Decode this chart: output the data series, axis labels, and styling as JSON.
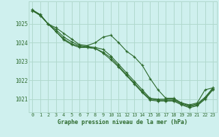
{
  "background_color": "#cff0ee",
  "grid_color": "#b0d8cc",
  "line_color": "#2d6a2d",
  "marker_color": "#2d6a2d",
  "xlabel": "Graphe pression niveau de la mer (hPa)",
  "xlim": [
    -0.5,
    23.5
  ],
  "ylim": [
    1020.3,
    1026.2
  ],
  "yticks": [
    1021,
    1022,
    1023,
    1024,
    1025
  ],
  "xticks": [
    0,
    1,
    2,
    3,
    4,
    5,
    6,
    7,
    8,
    9,
    10,
    11,
    12,
    13,
    14,
    15,
    16,
    17,
    18,
    19,
    20,
    21,
    22,
    23
  ],
  "series": [
    [
      1025.7,
      1025.5,
      1025.0,
      1024.8,
      1024.5,
      1024.2,
      1023.9,
      1023.85,
      1024.0,
      1024.3,
      1024.4,
      1024.0,
      1023.55,
      1023.25,
      1022.8,
      1022.1,
      1021.5,
      1021.05,
      1021.05,
      1020.8,
      1020.7,
      1020.8,
      1021.5,
      1021.6
    ],
    [
      1025.75,
      1025.5,
      1025.0,
      1024.7,
      1024.3,
      1024.05,
      1023.85,
      1023.8,
      1023.75,
      1023.65,
      1023.3,
      1022.85,
      1022.4,
      1021.95,
      1021.5,
      1021.05,
      1021.0,
      1021.0,
      1021.0,
      1020.8,
      1020.65,
      1020.75,
      1021.1,
      1021.6
    ],
    [
      1025.7,
      1025.45,
      1025.0,
      1024.6,
      1024.2,
      1023.95,
      1023.8,
      1023.75,
      1023.7,
      1023.5,
      1023.2,
      1022.75,
      1022.3,
      1021.85,
      1021.4,
      1021.0,
      1020.95,
      1020.95,
      1020.95,
      1020.75,
      1020.6,
      1020.7,
      1021.05,
      1021.55
    ],
    [
      1025.75,
      1025.45,
      1025.0,
      1024.6,
      1024.15,
      1023.9,
      1023.75,
      1023.75,
      1023.7,
      1023.45,
      1023.1,
      1022.7,
      1022.25,
      1021.8,
      1021.35,
      1020.95,
      1020.9,
      1020.9,
      1020.9,
      1020.7,
      1020.55,
      1020.65,
      1021.0,
      1021.5
    ]
  ]
}
